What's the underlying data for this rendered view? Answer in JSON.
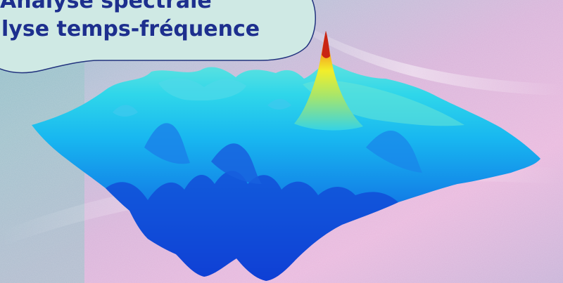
{
  "title": {
    "line1": "Analyse spectrale",
    "line2": "lyse temps-fréquence"
  },
  "colors": {
    "title_text": "#1d2f8e",
    "bubble_fill": "#cfe9e4",
    "bubble_border": "#22337e",
    "surface_low": "#0a2fd1",
    "surface_mid": "#18b7f0",
    "surface_high": "#f2ee2a",
    "surface_peak": "#d62c18",
    "background_pink": "#e8b6de",
    "background_gray": "#aab6c2"
  },
  "image_description_tags": [
    "3d-surface-plot",
    "spectral-peak",
    "speech-bubble-title"
  ]
}
